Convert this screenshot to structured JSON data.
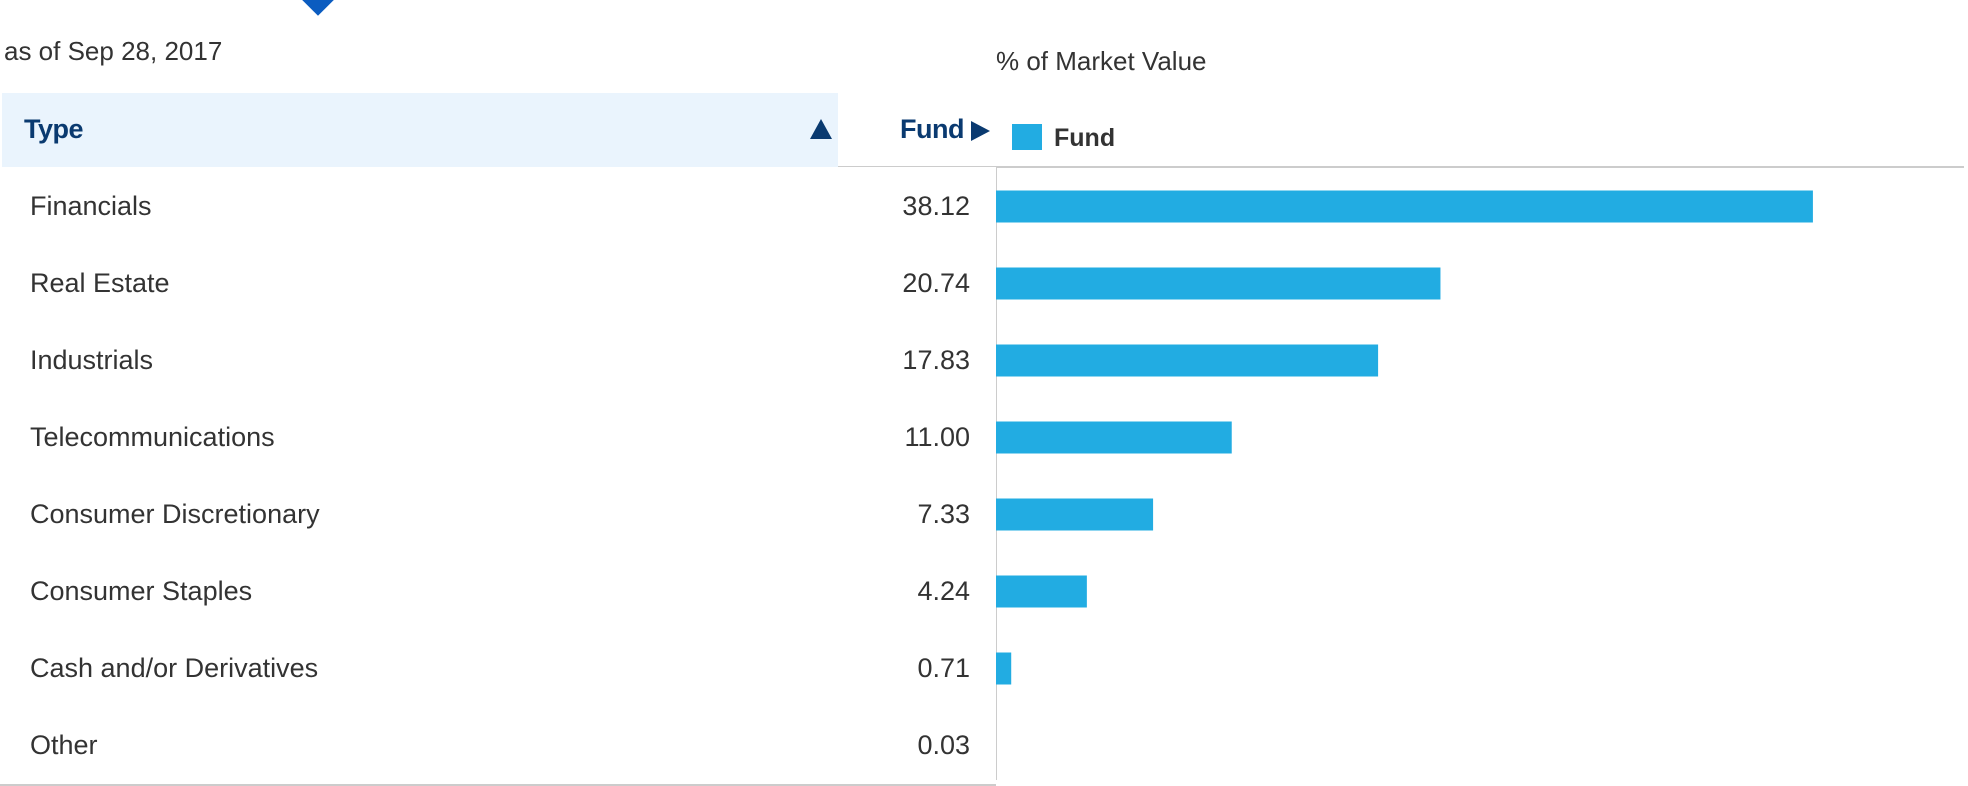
{
  "as_of": "as of Sep 28, 2017",
  "chart_title": "% of Market Value",
  "table": {
    "columns": [
      {
        "label": "Type",
        "sort": "ascending"
      },
      {
        "label": "Fund"
      }
    ],
    "rows": [
      {
        "label": "Financials",
        "value": "38.12"
      },
      {
        "label": "Real Estate",
        "value": "20.74"
      },
      {
        "label": "Industrials",
        "value": "17.83"
      },
      {
        "label": "Telecommunications",
        "value": "11.00"
      },
      {
        "label": "Consumer Discretionary",
        "value": "7.33"
      },
      {
        "label": "Consumer Staples",
        "value": "4.24"
      },
      {
        "label": "Cash and/or Derivatives",
        "value": "0.71"
      },
      {
        "label": "Other",
        "value": "0.03"
      }
    ]
  },
  "legend": {
    "label": "Fund",
    "color": "#22ace2"
  },
  "chart_data": {
    "type": "bar",
    "orientation": "horizontal",
    "title": "% of Market Value",
    "categories": [
      "Financials",
      "Real Estate",
      "Industrials",
      "Telecommunications",
      "Consumer Discretionary",
      "Consumer Staples",
      "Cash and/or Derivatives",
      "Other"
    ],
    "series": [
      {
        "name": "Fund",
        "values": [
          38.12,
          20.74,
          17.83,
          11.0,
          7.33,
          4.24,
          0.71,
          0.03
        ],
        "color": "#22ace2"
      }
    ],
    "xlim": [
      0,
      45
    ],
    "legend_position": "top-left",
    "grid": false
  },
  "icons": {
    "sort": "sort-ascending-triangle",
    "fund_header": "play-arrow",
    "tab_pointer": "caret-down"
  }
}
